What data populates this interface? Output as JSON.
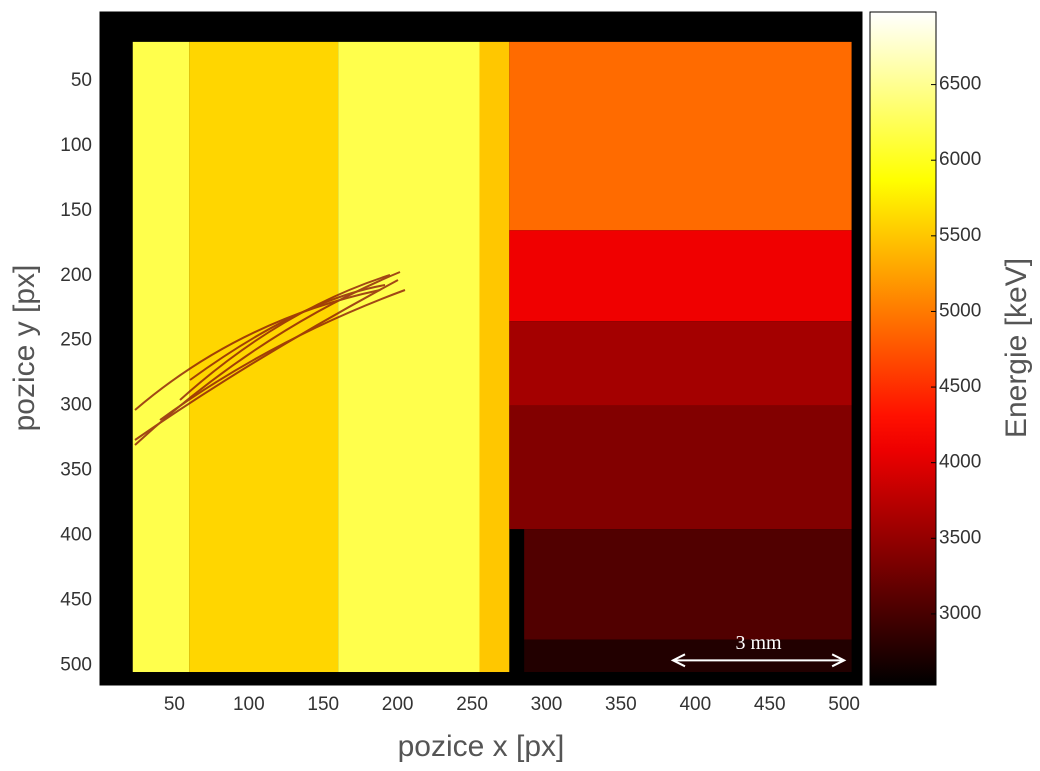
{
  "chart_data": {
    "type": "heatmap",
    "xlabel": "pozice x [px]",
    "ylabel": "pozice y [px]",
    "colorbar_label": "Energie [keV]",
    "colormap": "hot",
    "xlim": [
      0,
      512
    ],
    "ylim": [
      -3,
      515
    ],
    "clim": [
      2530,
      6980
    ],
    "xticks": [
      50,
      100,
      150,
      200,
      250,
      300,
      350,
      400,
      450,
      500
    ],
    "yticks": [
      50,
      100,
      150,
      200,
      250,
      300,
      350,
      400,
      450,
      500
    ],
    "cticks": [
      3000,
      3500,
      4000,
      4500,
      5000,
      5500,
      6000,
      6500
    ],
    "regions": [
      {
        "x": [
          22,
          60
        ],
        "y": [
          20,
          505
        ],
        "value": 6200
      },
      {
        "x": [
          60,
          160
        ],
        "y": [
          20,
          505
        ],
        "value": 5600
      },
      {
        "x": [
          160,
          255
        ],
        "y": [
          20,
          505
        ],
        "value": 6200
      },
      {
        "x": [
          255,
          275
        ],
        "y": [
          20,
          505
        ],
        "value": 5500
      },
      {
        "x": [
          275,
          505
        ],
        "y": [
          20,
          165
        ],
        "value": 4900
      },
      {
        "x": [
          275,
          505
        ],
        "y": [
          165,
          235
        ],
        "value": 4100
      },
      {
        "x": [
          275,
          505
        ],
        "y": [
          235,
          300
        ],
        "value": 3600
      },
      {
        "x": [
          275,
          505
        ],
        "y": [
          300,
          395
        ],
        "value": 3380
      },
      {
        "x": [
          285,
          505
        ],
        "y": [
          395,
          480
        ],
        "value": 3060
      },
      {
        "x": [
          285,
          505
        ],
        "y": [
          480,
          505
        ],
        "value": 2750
      }
    ],
    "annotation": {
      "text": "3 mm",
      "x": [
        385,
        500
      ],
      "y": 496
    }
  }
}
